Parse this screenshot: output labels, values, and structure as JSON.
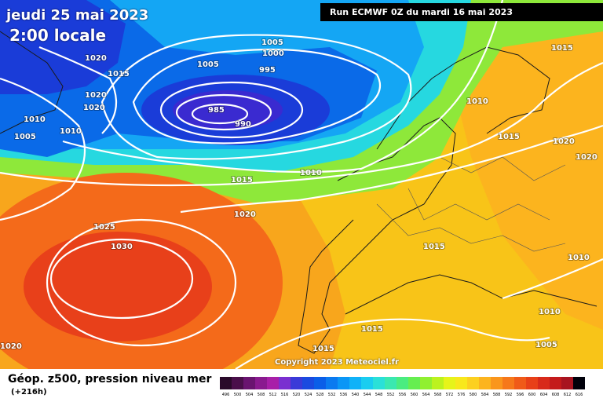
{
  "map": {
    "date": "jeudi 25 mai 2023",
    "time": "2:00 locale",
    "run": "Run ECMWF 0Z du mardi 16 mai 2023",
    "copyright": "Copyright 2023 Meteociel.fr",
    "isobar_labels": [
      "1020",
      "1015",
      "1020",
      "1020",
      "1010",
      "1005",
      "1010",
      "1005",
      "1000",
      "1005",
      "995",
      "985",
      "990",
      "1015",
      "1010",
      "1015",
      "1020",
      "1020",
      "1010",
      "1015",
      "1025",
      "1030",
      "1020",
      "1015",
      "1010",
      "1015",
      "1015",
      "1010",
      "1005",
      "1020"
    ]
  },
  "legend": {
    "title": "Géop. z500, pression niveau mer",
    "subtitle": "(+216h)",
    "scale_values": [
      "496",
      "500",
      "504",
      "508",
      "512",
      "516",
      "520",
      "524",
      "528",
      "532",
      "536",
      "540",
      "544",
      "548",
      "552",
      "556",
      "560",
      "564",
      "568",
      "572",
      "576",
      "580",
      "584",
      "588",
      "592",
      "596",
      "600",
      "604",
      "608",
      "612",
      "616"
    ],
    "scale_colors": [
      "#2a0a2a",
      "#4a0f4a",
      "#6a1470",
      "#8a1a8f",
      "#a81fa8",
      "#7a2fd0",
      "#3a3ad8",
      "#1a4ae0",
      "#0a5ee8",
      "#0a7af0",
      "#0a96f6",
      "#10b2f8",
      "#1acdf0",
      "#2ae0d8",
      "#3ae8b0",
      "#4aec80",
      "#66ee50",
      "#90f030",
      "#bcf21e",
      "#e6f41a",
      "#f8e81c",
      "#fcd020",
      "#fcb41e",
      "#fa961c",
      "#f6781a",
      "#f05a18",
      "#e84018",
      "#d82a1a",
      "#c41a1c",
      "#a81420",
      "#00000a"
    ]
  }
}
